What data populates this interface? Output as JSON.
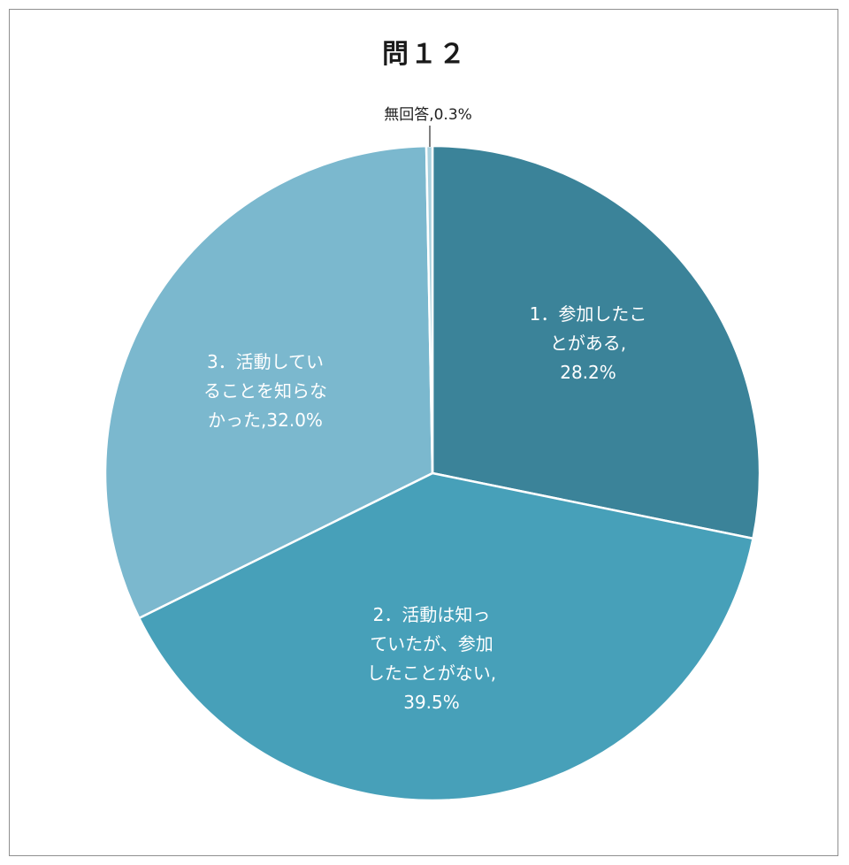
{
  "chart_data": {
    "type": "pie",
    "title": "問１２",
    "slices": [
      {
        "label": "1．参加したことがある",
        "value": 28.2,
        "value_text": "28.2%",
        "color": "#3b8399",
        "label_lines": [
          "1．参加したこ",
          "とがある,",
          "28.2%"
        ]
      },
      {
        "label": "2．活動は知っていたが、参加したことがない",
        "value": 39.5,
        "value_text": "39.5%",
        "color": "#47a0b9",
        "label_lines": [
          "2．活動は知っ",
          "ていたが、参加",
          "したことがない,",
          "39.5%"
        ]
      },
      {
        "label": "3．活動していることを知らなかった",
        "value": 32.0,
        "value_text": "32.0%",
        "color": "#7bb8ce",
        "label_lines": [
          "3．活動してい",
          "ることを知らな",
          "かった,32.0%"
        ]
      },
      {
        "label": "無回答",
        "value": 0.3,
        "value_text": "0.3%",
        "color": "#a9d1de",
        "label_lines": [
          "無回答,0.3%"
        ]
      }
    ],
    "start_angle": "12 o'clock",
    "direction": "clockwise",
    "legend": "none"
  }
}
